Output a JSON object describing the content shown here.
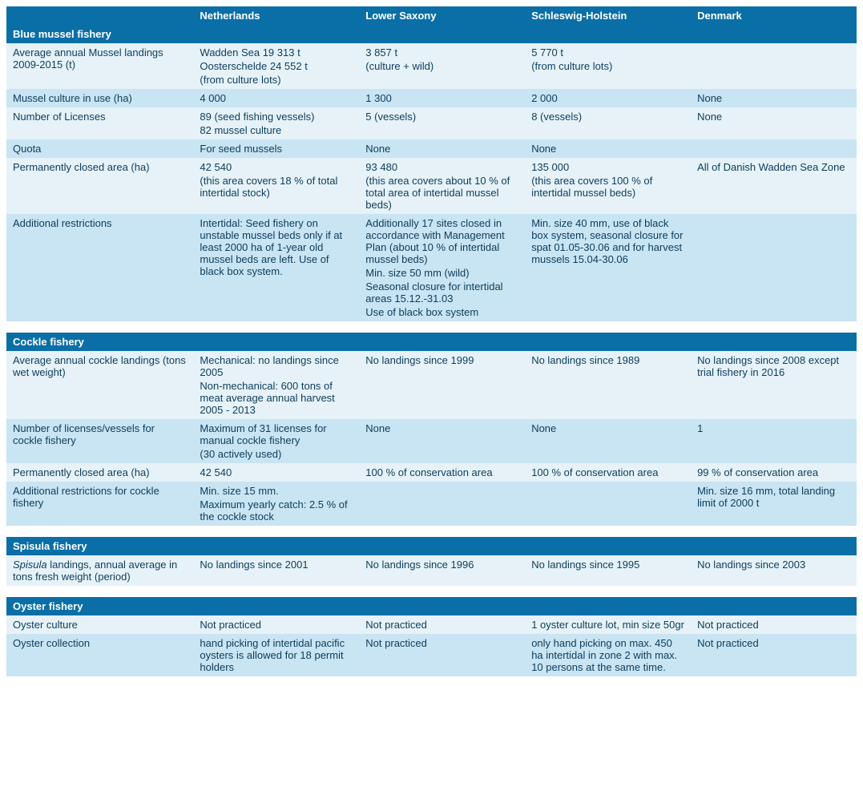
{
  "colors": {
    "header_bg": "#0a6fa6",
    "header_fg": "#ffffff",
    "row_light": "#e6f2f8",
    "row_med": "#c9e4f2",
    "text": "#0c3d5c"
  },
  "columns": [
    "",
    "Netherlands",
    "Lower Saxony",
    "Schleswig-Holstein",
    "Denmark"
  ],
  "sections": [
    {
      "title": "Blue mussel fishery",
      "rows": [
        {
          "shade": "light",
          "label": [
            "Average annual Mussel landings 2009-2015 (t)"
          ],
          "cells": [
            [
              "Wadden Sea 19 313 t",
              "Oosterschelde 24 552 t",
              "(from culture lots)"
            ],
            [
              "3 857 t",
              "(culture + wild)"
            ],
            [
              "5 770 t",
              "(from culture lots)"
            ],
            [
              ""
            ]
          ]
        },
        {
          "shade": "med",
          "label": [
            "Mussel culture in use (ha)"
          ],
          "cells": [
            [
              "4 000"
            ],
            [
              "1 300"
            ],
            [
              "2 000"
            ],
            [
              "None"
            ]
          ]
        },
        {
          "shade": "light",
          "label": [
            "Number of Licenses"
          ],
          "cells": [
            [
              "89 (seed fishing vessels)",
              "82 mussel culture"
            ],
            [
              "5 (vessels)"
            ],
            [
              "8 (vessels)"
            ],
            [
              "None"
            ]
          ]
        },
        {
          "shade": "med",
          "label": [
            "Quota"
          ],
          "cells": [
            [
              "For seed mussels"
            ],
            [
              "None"
            ],
            [
              "None"
            ],
            [
              ""
            ]
          ]
        },
        {
          "shade": "light",
          "label": [
            "Permanently closed area (ha)"
          ],
          "cells": [
            [
              "42 540",
              "(this area covers 18 % of total intertidal stock)"
            ],
            [
              "93 480",
              "(this area covers about 10 % of total area of intertidal mussel beds)"
            ],
            [
              "135 000",
              "(this area covers 100 % of intertidal mussel beds)"
            ],
            [
              "All of Danish Wadden Sea Zone"
            ]
          ]
        },
        {
          "shade": "med",
          "label": [
            "Additional restrictions"
          ],
          "cells": [
            [
              "Intertidal: Seed fishery on unstable mussel beds only if at least 2000 ha of 1-year old mussel beds are left. Use of black box system."
            ],
            [
              "Additionally 17 sites closed in accordance with Management Plan (about 10 % of intertidal mussel beds)",
              "Min. size 50 mm (wild)",
              "Seasonal closure for intertidal areas 15.12.-31.03",
              "Use of black box system"
            ],
            [
              "Min. size 40 mm, use of black box system, seasonal closure for spat 01.05-30.06 and for harvest mussels 15.04-30.06"
            ],
            [
              ""
            ]
          ]
        }
      ]
    },
    {
      "title": "Cockle fishery",
      "rows": [
        {
          "shade": "light",
          "label": [
            "Average annual cockle landings (tons wet weight)"
          ],
          "cells": [
            [
              "Mechanical: no landings since 2005",
              "Non-mechanical: 600 tons of meat average annual harvest 2005 - 2013"
            ],
            [
              "No landings since 1999"
            ],
            [
              "No landings since 1989"
            ],
            [
              "No landings since 2008 except trial fishery in 2016"
            ]
          ]
        },
        {
          "shade": "med",
          "label": [
            "Number of licenses/vessels for cockle fishery"
          ],
          "cells": [
            [
              "Maximum of 31 licenses for manual cockle fishery",
              "(30 actively used)"
            ],
            [
              "None"
            ],
            [
              "None"
            ],
            [
              "1"
            ]
          ]
        },
        {
          "shade": "light",
          "label": [
            "Permanently closed area (ha)"
          ],
          "cells": [
            [
              "42 540"
            ],
            [
              "100 % of conservation area"
            ],
            [
              "100 % of conservation area"
            ],
            [
              "99 % of conservation area"
            ]
          ]
        },
        {
          "shade": "med",
          "label": [
            "Additional restrictions for cockle fishery"
          ],
          "cells": [
            [
              "Min. size 15 mm.",
              "Maximum yearly catch: 2.5 % of the cockle stock"
            ],
            [
              ""
            ],
            [
              ""
            ],
            [
              "Min. size 16 mm, total landing limit of 2000 t"
            ]
          ]
        }
      ]
    },
    {
      "title": "Spisula fishery",
      "rows": [
        {
          "shade": "light",
          "label_html": "<span class=\"italic\">Spisula</span>  landings, annual average in tons fresh weight (period)",
          "cells": [
            [
              "No landings since 2001"
            ],
            [
              "No landings since 1996"
            ],
            [
              "No landings since 1995"
            ],
            [
              "No landings since 2003"
            ]
          ]
        }
      ]
    },
    {
      "title": "Oyster fishery",
      "rows": [
        {
          "shade": "light",
          "label": [
            "Oyster culture"
          ],
          "cells": [
            [
              "Not practiced"
            ],
            [
              "Not practiced"
            ],
            [
              "1 oyster culture lot, min size 50gr"
            ],
            [
              "Not practiced"
            ]
          ]
        },
        {
          "shade": "med",
          "label": [
            "Oyster collection"
          ],
          "cells": [
            [
              "hand picking of intertidal pacific oysters is allowed for 18 permit holders"
            ],
            [
              "Not practiced"
            ],
            [
              "only hand picking on max. 450 ha intertidal in zone 2 with max. 10 persons at the same time."
            ],
            [
              "Not practiced"
            ]
          ]
        }
      ]
    }
  ]
}
